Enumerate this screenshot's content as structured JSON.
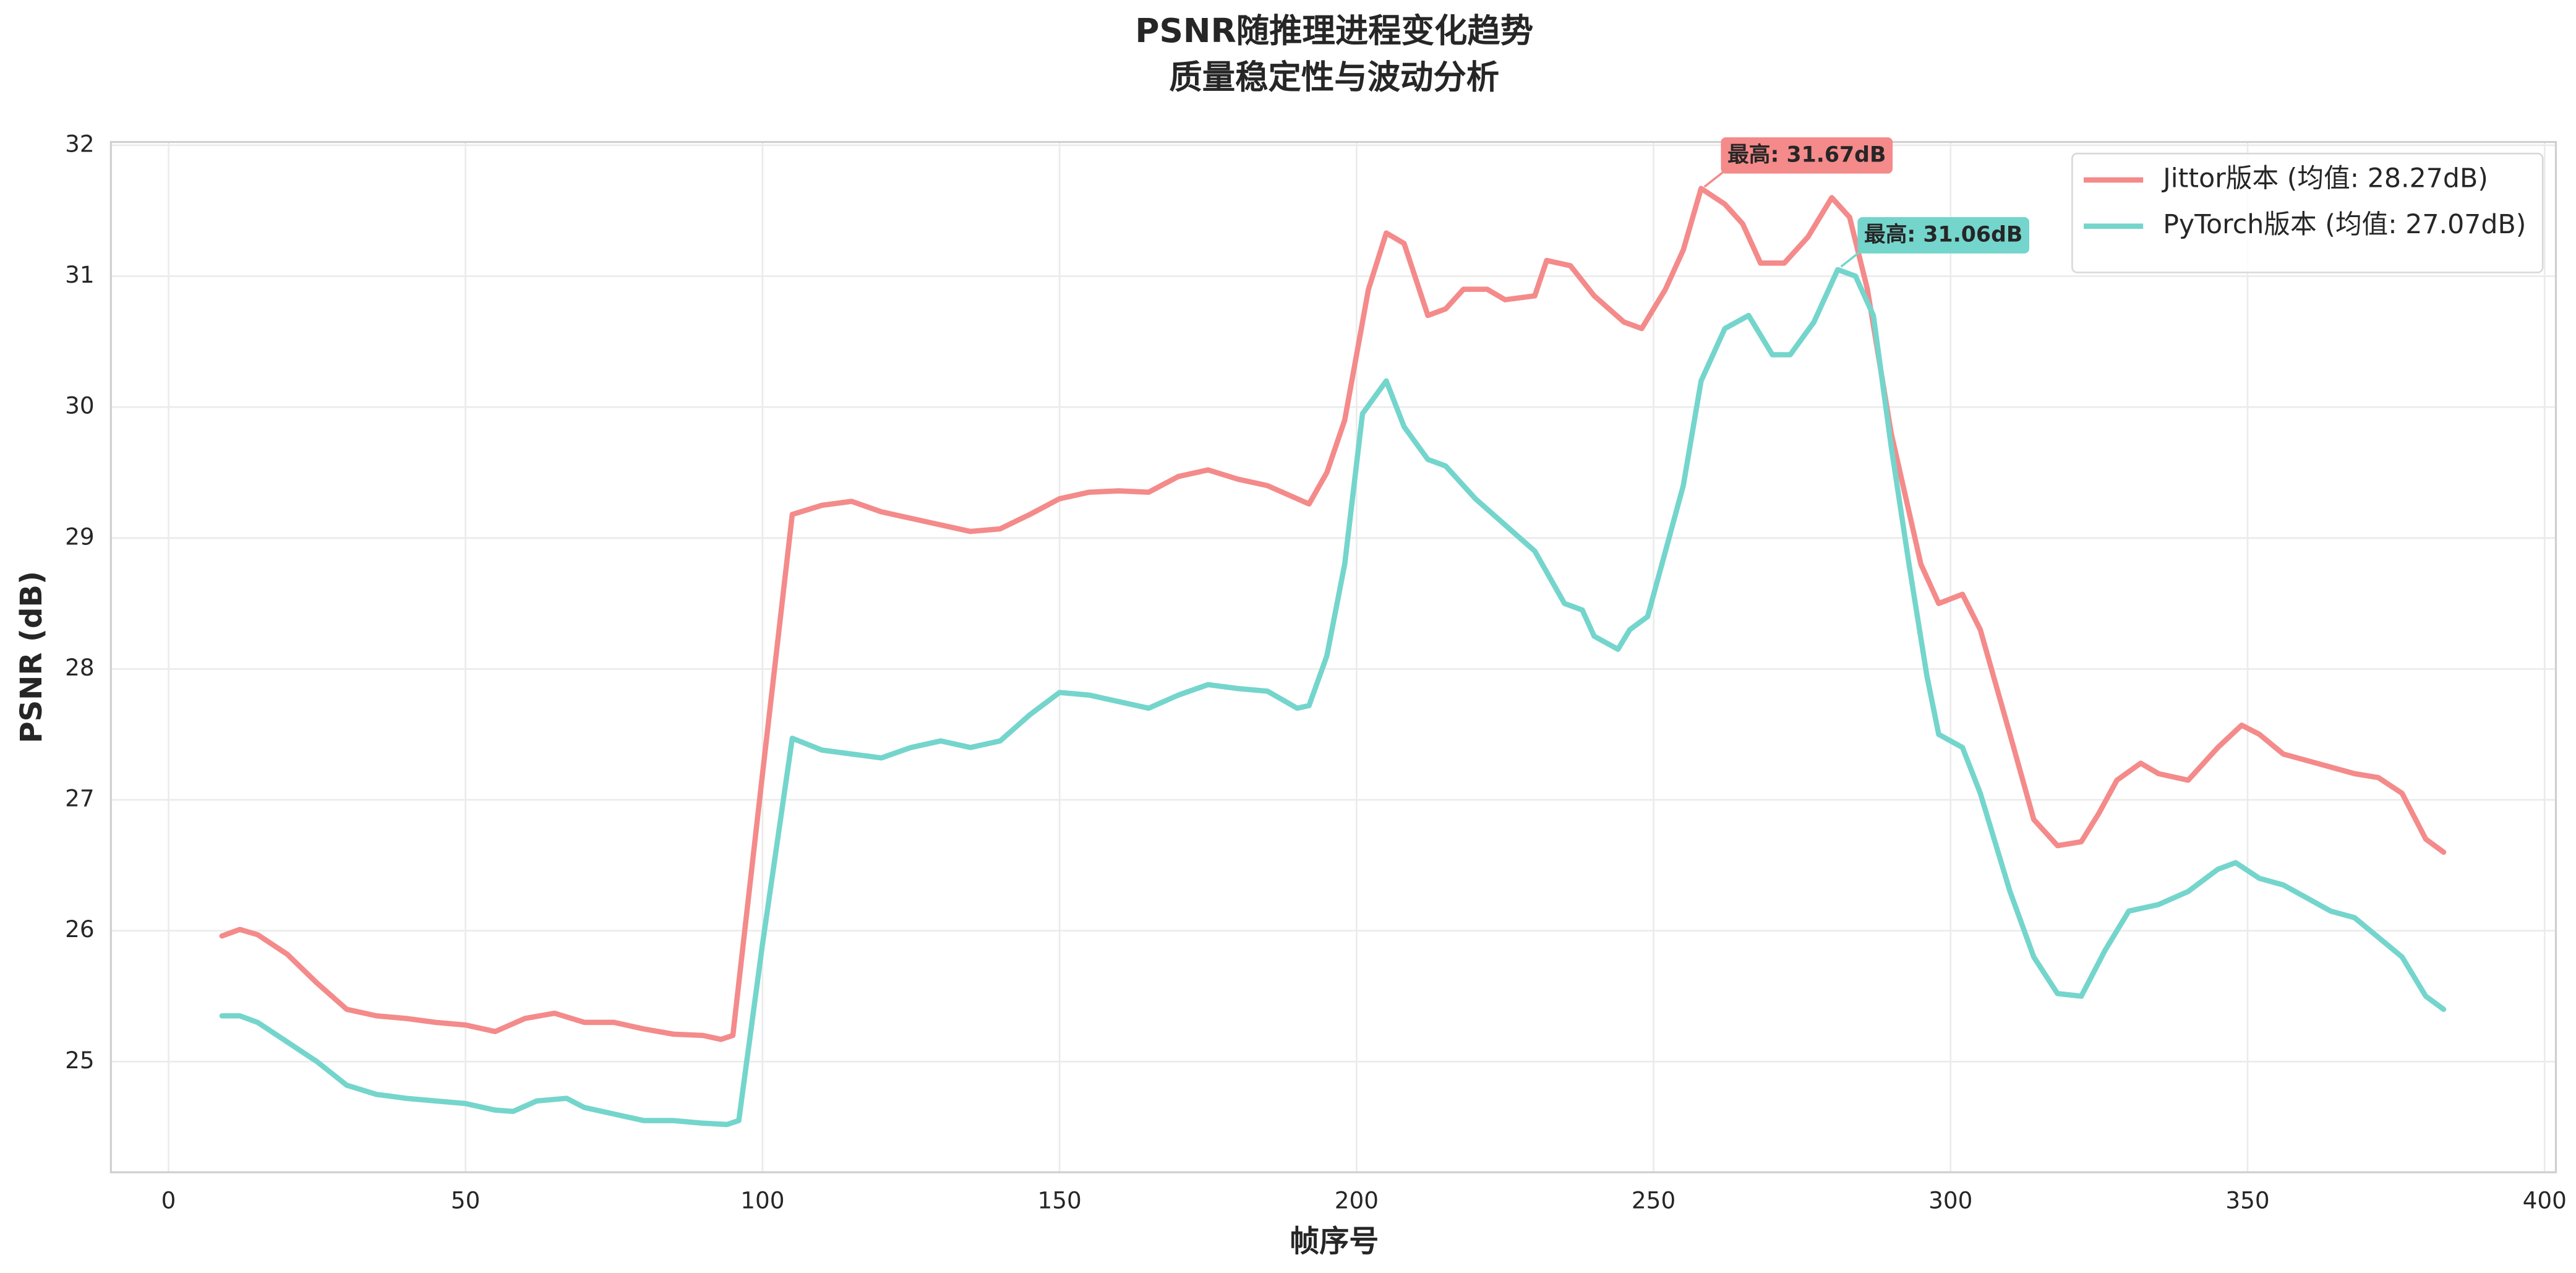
{
  "chart_data": {
    "type": "line",
    "title": "PSNR随推理进程变化趋势",
    "subtitle": "质量稳定性与波动分析",
    "x_label": "帧序号",
    "y_label": "PSNR (dB)",
    "xlim": [
      -9.7,
      401.9
    ],
    "ylim": [
      24.155,
      32.025
    ],
    "xticks": [
      0,
      50,
      100,
      150,
      200,
      250,
      300,
      350,
      400
    ],
    "yticks": [
      25,
      26,
      27,
      28,
      29,
      30,
      31,
      32
    ],
    "grid": true,
    "legend": "upper right",
    "series": [
      {
        "name": "Jittor版本 (均值: 28.27dB)",
        "color": "#f48a8a",
        "x": [
          9,
          12,
          15,
          20,
          25,
          30,
          35,
          40,
          45,
          50,
          55,
          60,
          65,
          70,
          75,
          80,
          85,
          90,
          93,
          95,
          100,
          105,
          110,
          115,
          120,
          125,
          130,
          135,
          140,
          145,
          150,
          155,
          160,
          165,
          170,
          175,
          180,
          185,
          190,
          192,
          195,
          198,
          202,
          205,
          208,
          212,
          215,
          218,
          222,
          225,
          230,
          232,
          236,
          240,
          245,
          248,
          252,
          255,
          258,
          262,
          265,
          268,
          272,
          276,
          280,
          283,
          286,
          290,
          295,
          298,
          302,
          305,
          310,
          314,
          318,
          322,
          325,
          328,
          332,
          335,
          340,
          345,
          349,
          352,
          356,
          360,
          364,
          368,
          372,
          376,
          380,
          383
        ],
        "values": [
          25.96,
          26.01,
          25.97,
          25.82,
          25.6,
          25.4,
          25.35,
          25.33,
          25.3,
          25.28,
          25.23,
          25.33,
          25.37,
          25.3,
          25.3,
          25.25,
          25.21,
          25.2,
          25.17,
          25.2,
          27.2,
          29.18,
          29.25,
          29.28,
          29.2,
          29.15,
          29.1,
          29.05,
          29.07,
          29.18,
          29.3,
          29.35,
          29.36,
          29.35,
          29.47,
          29.52,
          29.45,
          29.4,
          29.3,
          29.26,
          29.5,
          29.9,
          30.9,
          31.33,
          31.25,
          30.7,
          30.75,
          30.9,
          30.9,
          30.82,
          30.85,
          31.12,
          31.08,
          30.85,
          30.65,
          30.6,
          30.9,
          31.2,
          31.67,
          31.55,
          31.4,
          31.1,
          31.1,
          31.3,
          31.6,
          31.45,
          30.9,
          29.8,
          28.8,
          28.5,
          28.57,
          28.3,
          27.5,
          26.85,
          26.65,
          26.68,
          26.9,
          27.15,
          27.28,
          27.2,
          27.15,
          27.4,
          27.57,
          27.5,
          27.35,
          27.3,
          27.25,
          27.2,
          27.17,
          27.05,
          26.7,
          26.6
        ]
      },
      {
        "name": "PyTorch版本 (均值: 27.07dB)",
        "color": "#74d5cc",
        "x": [
          9,
          12,
          15,
          20,
          25,
          30,
          35,
          40,
          45,
          50,
          55,
          58,
          62,
          67,
          70,
          75,
          80,
          85,
          90,
          94,
          96,
          100,
          105,
          110,
          115,
          120,
          125,
          130,
          135,
          140,
          145,
          150,
          155,
          160,
          165,
          170,
          175,
          180,
          185,
          190,
          192,
          195,
          198,
          201,
          205,
          208,
          212,
          215,
          220,
          225,
          230,
          235,
          238,
          240,
          244,
          246,
          249,
          252,
          255,
          258,
          262,
          266,
          270,
          273,
          277,
          281,
          284,
          287,
          290,
          293,
          296,
          298,
          302,
          305,
          310,
          314,
          318,
          322,
          326,
          330,
          335,
          340,
          345,
          348,
          352,
          356,
          360,
          364,
          368,
          372,
          376,
          380,
          383
        ],
        "values": [
          25.35,
          25.35,
          25.3,
          25.15,
          25.0,
          24.82,
          24.75,
          24.72,
          24.7,
          24.68,
          24.63,
          24.62,
          24.7,
          24.72,
          24.65,
          24.6,
          24.55,
          24.55,
          24.53,
          24.52,
          24.55,
          25.9,
          27.47,
          27.38,
          27.35,
          27.32,
          27.4,
          27.45,
          27.4,
          27.45,
          27.65,
          27.82,
          27.8,
          27.75,
          27.7,
          27.8,
          27.88,
          27.85,
          27.83,
          27.7,
          27.72,
          28.1,
          28.8,
          29.95,
          30.2,
          29.85,
          29.6,
          29.55,
          29.3,
          29.1,
          28.9,
          28.5,
          28.45,
          28.25,
          28.15,
          28.3,
          28.4,
          28.9,
          29.4,
          30.2,
          30.6,
          30.7,
          30.4,
          30.4,
          30.65,
          31.05,
          31.0,
          30.7,
          29.7,
          28.8,
          27.95,
          27.5,
          27.4,
          27.05,
          26.3,
          25.8,
          25.52,
          25.5,
          25.85,
          26.15,
          26.2,
          26.3,
          26.47,
          26.52,
          26.4,
          26.35,
          26.25,
          26.15,
          26.1,
          25.95,
          25.8,
          25.5,
          25.4
        ]
      }
    ],
    "annotations": [
      {
        "text": "最高: 31.67dB",
        "x": 258,
        "y": 31.67
      },
      {
        "text": "最高: 31.06dB",
        "x": 281,
        "y": 31.06
      }
    ]
  }
}
